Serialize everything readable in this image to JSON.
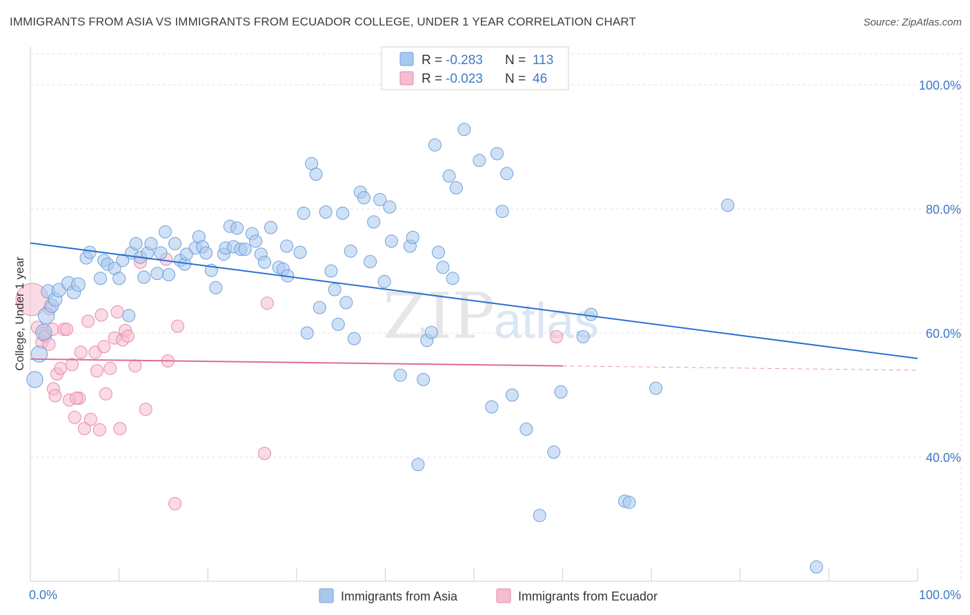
{
  "title": "IMMIGRANTS FROM ASIA VS IMMIGRANTS FROM ECUADOR COLLEGE, UNDER 1 YEAR CORRELATION CHART",
  "source": "Source: ZipAtlas.com",
  "watermark": {
    "zip": "ZIP",
    "atlas": "atlas"
  },
  "colors": {
    "asia_fill": "#a9c8ef",
    "asia_stroke": "#6d9fd8",
    "asia_line": "#2a6fd1",
    "ecuador_fill": "#f6bccf",
    "ecuador_stroke": "#e58aa8",
    "ecuador_line": "#e06a92",
    "grid": "#e0e0e0",
    "tick_text": "#3d78c9"
  },
  "legend": {
    "r_label": "R =",
    "n_label": "N =",
    "asia": {
      "r": "-0.283",
      "n": "113"
    },
    "ecuador": {
      "r": "-0.023",
      "n": "46"
    }
  },
  "chart_data": {
    "type": "scatter",
    "title": "IMMIGRANTS FROM ASIA VS IMMIGRANTS FROM ECUADOR COLLEGE, UNDER 1 YEAR CORRELATION CHART",
    "xlabel": "",
    "ylabel": "College, Under 1 year",
    "xlim": [
      0,
      100
    ],
    "ylim": [
      20,
      105
    ],
    "x_tick_labels": [
      "0.0%",
      "100.0%"
    ],
    "y_ticks": [
      40,
      60,
      80,
      100
    ],
    "y_tick_labels": [
      "40.0%",
      "60.0%",
      "80.0%",
      "100.0%"
    ],
    "legend_placement": "top-center",
    "series": [
      {
        "name": "Immigrants from Asia",
        "trend": {
          "x": [
            0,
            100
          ],
          "y": [
            74.5,
            55.9
          ]
        },
        "points": [
          {
            "x": 0.5,
            "y": 52.5,
            "s": 1.3
          },
          {
            "x": 1.0,
            "y": 56.6,
            "s": 1.3
          },
          {
            "x": 1.5,
            "y": 60.1,
            "s": 1.3
          },
          {
            "x": 1.8,
            "y": 62.8,
            "s": 1.3
          },
          {
            "x": 2.0,
            "y": 66.7,
            "s": 1.1
          },
          {
            "x": 2.4,
            "y": 64.4,
            "s": 1.1
          },
          {
            "x": 2.8,
            "y": 65.4,
            "s": 1.1
          },
          {
            "x": 3.2,
            "y": 66.9,
            "s": 1.1
          },
          {
            "x": 4.3,
            "y": 68.0,
            "s": 1.1
          },
          {
            "x": 4.9,
            "y": 66.6,
            "s": 1.1
          },
          {
            "x": 5.4,
            "y": 67.8,
            "s": 1.1
          },
          {
            "x": 6.3,
            "y": 72.1,
            "s": 1.0
          },
          {
            "x": 6.7,
            "y": 73.0,
            "s": 1.0
          },
          {
            "x": 7.9,
            "y": 68.8,
            "s": 1.0
          },
          {
            "x": 8.3,
            "y": 71.7,
            "s": 1.0
          },
          {
            "x": 8.7,
            "y": 71.1,
            "s": 1.0
          },
          {
            "x": 9.5,
            "y": 70.4,
            "s": 1.0
          },
          {
            "x": 10.0,
            "y": 68.8,
            "s": 1.0
          },
          {
            "x": 10.4,
            "y": 71.7,
            "s": 1.0
          },
          {
            "x": 11.1,
            "y": 62.8,
            "s": 1.0
          },
          {
            "x": 11.4,
            "y": 72.9,
            "s": 1.0
          },
          {
            "x": 11.9,
            "y": 74.4,
            "s": 1.0
          },
          {
            "x": 12.4,
            "y": 72.2,
            "s": 1.0
          },
          {
            "x": 12.8,
            "y": 69.0,
            "s": 1.0
          },
          {
            "x": 13.2,
            "y": 72.9,
            "s": 1.0
          },
          {
            "x": 13.6,
            "y": 74.4,
            "s": 1.0
          },
          {
            "x": 14.3,
            "y": 69.6,
            "s": 1.0
          },
          {
            "x": 14.7,
            "y": 72.9,
            "s": 1.0
          },
          {
            "x": 15.6,
            "y": 69.4,
            "s": 1.0
          },
          {
            "x": 15.2,
            "y": 76.3,
            "s": 1.0
          },
          {
            "x": 16.3,
            "y": 74.4,
            "s": 1.0
          },
          {
            "x": 16.9,
            "y": 71.7,
            "s": 1.0
          },
          {
            "x": 17.4,
            "y": 71.1,
            "s": 1.0
          },
          {
            "x": 17.6,
            "y": 72.7,
            "s": 1.0
          },
          {
            "x": 18.6,
            "y": 73.7,
            "s": 1.0
          },
          {
            "x": 19.0,
            "y": 75.5,
            "s": 1.0
          },
          {
            "x": 19.4,
            "y": 73.9,
            "s": 1.0
          },
          {
            "x": 19.8,
            "y": 72.9,
            "s": 1.0
          },
          {
            "x": 20.4,
            "y": 70.1,
            "s": 1.0
          },
          {
            "x": 20.9,
            "y": 67.3,
            "s": 1.0
          },
          {
            "x": 21.8,
            "y": 72.7,
            "s": 1.0
          },
          {
            "x": 22.0,
            "y": 73.7,
            "s": 1.0
          },
          {
            "x": 22.5,
            "y": 77.2,
            "s": 1.0
          },
          {
            "x": 22.9,
            "y": 73.9,
            "s": 1.0
          },
          {
            "x": 23.3,
            "y": 76.9,
            "s": 1.0
          },
          {
            "x": 23.7,
            "y": 73.5,
            "s": 1.0
          },
          {
            "x": 24.2,
            "y": 73.5,
            "s": 1.0
          },
          {
            "x": 25.0,
            "y": 76.0,
            "s": 1.0
          },
          {
            "x": 25.4,
            "y": 74.8,
            "s": 1.0
          },
          {
            "x": 26.0,
            "y": 72.7,
            "s": 1.0
          },
          {
            "x": 26.4,
            "y": 71.4,
            "s": 1.0
          },
          {
            "x": 27.1,
            "y": 77.0,
            "s": 1.0
          },
          {
            "x": 28.0,
            "y": 70.6,
            "s": 1.0
          },
          {
            "x": 28.5,
            "y": 70.3,
            "s": 1.0
          },
          {
            "x": 29.0,
            "y": 69.2,
            "s": 1.0
          },
          {
            "x": 28.9,
            "y": 74.0,
            "s": 1.0
          },
          {
            "x": 30.4,
            "y": 73.0,
            "s": 1.0
          },
          {
            "x": 30.8,
            "y": 79.3,
            "s": 1.0
          },
          {
            "x": 31.2,
            "y": 60.0,
            "s": 1.0
          },
          {
            "x": 31.7,
            "y": 87.3,
            "s": 1.0
          },
          {
            "x": 32.2,
            "y": 85.6,
            "s": 1.0
          },
          {
            "x": 32.6,
            "y": 64.1,
            "s": 1.0
          },
          {
            "x": 33.3,
            "y": 79.5,
            "s": 1.0
          },
          {
            "x": 33.9,
            "y": 70.0,
            "s": 1.0
          },
          {
            "x": 34.3,
            "y": 67.0,
            "s": 1.0
          },
          {
            "x": 34.7,
            "y": 61.4,
            "s": 1.0
          },
          {
            "x": 35.2,
            "y": 79.3,
            "s": 1.0
          },
          {
            "x": 35.6,
            "y": 64.9,
            "s": 1.0
          },
          {
            "x": 36.1,
            "y": 73.2,
            "s": 1.0
          },
          {
            "x": 36.5,
            "y": 59.1,
            "s": 1.0
          },
          {
            "x": 37.2,
            "y": 82.7,
            "s": 1.0
          },
          {
            "x": 37.6,
            "y": 81.8,
            "s": 1.0
          },
          {
            "x": 38.3,
            "y": 71.5,
            "s": 1.0
          },
          {
            "x": 38.7,
            "y": 77.9,
            "s": 1.0
          },
          {
            "x": 39.4,
            "y": 81.5,
            "s": 1.0
          },
          {
            "x": 39.9,
            "y": 68.3,
            "s": 1.0
          },
          {
            "x": 40.5,
            "y": 80.3,
            "s": 1.0
          },
          {
            "x": 40.7,
            "y": 74.8,
            "s": 1.0
          },
          {
            "x": 41.7,
            "y": 53.2,
            "s": 1.0
          },
          {
            "x": 42.8,
            "y": 74.0,
            "s": 1.0
          },
          {
            "x": 43.1,
            "y": 75.4,
            "s": 1.0
          },
          {
            "x": 43.7,
            "y": 38.8,
            "s": 1.0
          },
          {
            "x": 44.3,
            "y": 52.5,
            "s": 1.0
          },
          {
            "x": 44.7,
            "y": 58.8,
            "s": 1.0
          },
          {
            "x": 45.2,
            "y": 60.1,
            "s": 1.0
          },
          {
            "x": 45.6,
            "y": 90.3,
            "s": 1.0
          },
          {
            "x": 46.0,
            "y": 73.0,
            "s": 1.0
          },
          {
            "x": 46.5,
            "y": 70.6,
            "s": 1.0
          },
          {
            "x": 47.2,
            "y": 85.3,
            "s": 1.0
          },
          {
            "x": 47.6,
            "y": 68.8,
            "s": 1.0
          },
          {
            "x": 48.0,
            "y": 83.4,
            "s": 1.0
          },
          {
            "x": 48.9,
            "y": 92.8,
            "s": 1.0
          },
          {
            "x": 50.6,
            "y": 87.8,
            "s": 1.0
          },
          {
            "x": 52.0,
            "y": 48.1,
            "s": 1.0
          },
          {
            "x": 52.6,
            "y": 88.9,
            "s": 1.0
          },
          {
            "x": 53.2,
            "y": 79.6,
            "s": 1.0
          },
          {
            "x": 53.7,
            "y": 85.7,
            "s": 1.0
          },
          {
            "x": 54.3,
            "y": 50.0,
            "s": 1.0
          },
          {
            "x": 55.9,
            "y": 44.5,
            "s": 1.0
          },
          {
            "x": 57.4,
            "y": 30.6,
            "s": 1.0
          },
          {
            "x": 59.0,
            "y": 40.8,
            "s": 1.0
          },
          {
            "x": 59.8,
            "y": 50.5,
            "s": 1.0
          },
          {
            "x": 62.3,
            "y": 59.4,
            "s": 1.0
          },
          {
            "x": 63.2,
            "y": 63.0,
            "s": 1.0
          },
          {
            "x": 67.0,
            "y": 32.9,
            "s": 1.0
          },
          {
            "x": 67.5,
            "y": 32.7,
            "s": 1.0
          },
          {
            "x": 70.5,
            "y": 51.1,
            "s": 1.0
          },
          {
            "x": 78.6,
            "y": 80.6,
            "s": 1.0
          },
          {
            "x": 88.6,
            "y": 22.3,
            "s": 1.0
          }
        ]
      },
      {
        "name": "Immigrants from Ecuador",
        "trend": {
          "x": [
            0,
            60
          ],
          "y": [
            55.8,
            54.7
          ]
        },
        "trend_dashed": {
          "x": [
            60,
            100
          ],
          "y": [
            54.7,
            54.0
          ]
        },
        "points": [
          {
            "x": 0.2,
            "y": 65.4,
            "s": 2.6
          },
          {
            "x": 0.8,
            "y": 60.9,
            "s": 1.0
          },
          {
            "x": 1.3,
            "y": 58.5,
            "s": 1.0
          },
          {
            "x": 1.5,
            "y": 60.0,
            "s": 1.0
          },
          {
            "x": 1.7,
            "y": 59.5,
            "s": 1.0
          },
          {
            "x": 2.1,
            "y": 58.2,
            "s": 1.0
          },
          {
            "x": 2.5,
            "y": 60.6,
            "s": 1.0
          },
          {
            "x": 2.6,
            "y": 51.0,
            "s": 1.0
          },
          {
            "x": 2.8,
            "y": 49.9,
            "s": 1.0
          },
          {
            "x": 3.0,
            "y": 53.4,
            "s": 1.0
          },
          {
            "x": 3.4,
            "y": 54.3,
            "s": 1.0
          },
          {
            "x": 3.8,
            "y": 60.6,
            "s": 1.0
          },
          {
            "x": 4.1,
            "y": 60.6,
            "s": 1.0
          },
          {
            "x": 4.4,
            "y": 49.2,
            "s": 1.0
          },
          {
            "x": 4.7,
            "y": 54.9,
            "s": 1.0
          },
          {
            "x": 5.0,
            "y": 46.4,
            "s": 1.0
          },
          {
            "x": 5.5,
            "y": 49.5,
            "s": 1.0
          },
          {
            "x": 5.7,
            "y": 56.9,
            "s": 1.0
          },
          {
            "x": 6.1,
            "y": 44.6,
            "s": 1.0
          },
          {
            "x": 6.5,
            "y": 61.9,
            "s": 1.0
          },
          {
            "x": 6.8,
            "y": 46.1,
            "s": 1.0
          },
          {
            "x": 7.3,
            "y": 56.9,
            "s": 1.0
          },
          {
            "x": 7.5,
            "y": 53.9,
            "s": 1.0
          },
          {
            "x": 7.8,
            "y": 44.4,
            "s": 1.0
          },
          {
            "x": 8.0,
            "y": 62.9,
            "s": 1.0
          },
          {
            "x": 8.3,
            "y": 57.8,
            "s": 1.0
          },
          {
            "x": 8.5,
            "y": 50.2,
            "s": 1.0
          },
          {
            "x": 9.0,
            "y": 54.3,
            "s": 1.0
          },
          {
            "x": 9.5,
            "y": 59.2,
            "s": 1.0
          },
          {
            "x": 9.8,
            "y": 63.4,
            "s": 1.0
          },
          {
            "x": 10.1,
            "y": 44.6,
            "s": 1.0
          },
          {
            "x": 10.4,
            "y": 58.9,
            "s": 1.0
          },
          {
            "x": 10.7,
            "y": 60.4,
            "s": 1.0
          },
          {
            "x": 11.0,
            "y": 59.5,
            "s": 1.0
          },
          {
            "x": 11.8,
            "y": 54.7,
            "s": 1.0
          },
          {
            "x": 12.4,
            "y": 71.4,
            "s": 1.0
          },
          {
            "x": 13.0,
            "y": 47.7,
            "s": 1.0
          },
          {
            "x": 15.3,
            "y": 71.9,
            "s": 1.0
          },
          {
            "x": 15.5,
            "y": 55.5,
            "s": 1.0
          },
          {
            "x": 16.3,
            "y": 32.5,
            "s": 1.0
          },
          {
            "x": 16.6,
            "y": 61.1,
            "s": 1.0
          },
          {
            "x": 26.4,
            "y": 40.6,
            "s": 1.0
          },
          {
            "x": 26.7,
            "y": 64.8,
            "s": 1.0
          },
          {
            "x": 59.3,
            "y": 59.4,
            "s": 1.0
          },
          {
            "x": 2.2,
            "y": 63.9,
            "s": 1.0
          },
          {
            "x": 5.2,
            "y": 49.5,
            "s": 1.0
          }
        ]
      }
    ]
  },
  "bottom_legend": {
    "asia_label": "Immigrants from Asia",
    "ecuador_label": "Immigrants from Ecuador"
  }
}
